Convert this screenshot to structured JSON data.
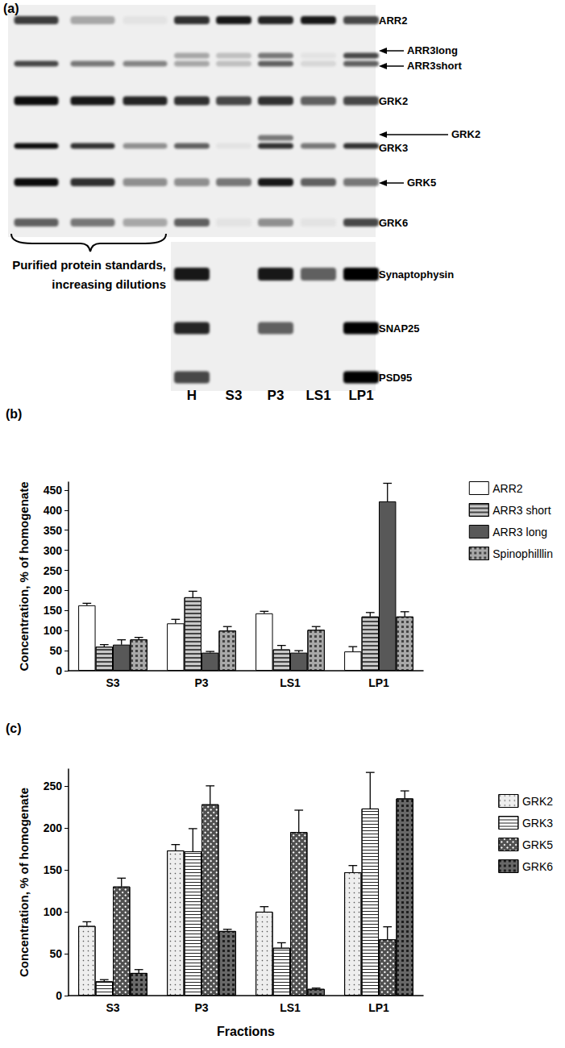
{
  "blot": {
    "label": "(a)",
    "lanes": [
      null,
      null,
      null,
      "H",
      "S3",
      "P3",
      "LS1",
      "LP1"
    ],
    "standards_label": [
      "Purified protein standards,",
      "increasing dilutions"
    ],
    "rows": [
      {
        "labels": [
          "ARR2"
        ],
        "bands": [
          [
            0.75,
            0.3,
            0.05,
            0.8,
            0.9,
            0.85,
            0.9,
            0.7
          ]
        ]
      },
      {
        "labels": [
          "ARR3long",
          "ARR3short"
        ],
        "bands": [
          [
            0,
            0,
            0,
            0.3,
            0.2,
            0.5,
            0.05,
            0.7
          ],
          [
            0.7,
            0.5,
            0.45,
            0.3,
            0.2,
            0.6,
            0.1,
            0.6
          ]
        ]
      },
      {
        "labels": [
          "GRK2"
        ],
        "bands": [
          [
            0.95,
            0.9,
            0.85,
            0.8,
            0.7,
            0.8,
            0.6,
            0.7
          ]
        ]
      },
      {
        "labels": [
          "GRK2",
          "GRK3"
        ],
        "bands": [
          [
            0,
            0,
            0,
            0,
            0,
            0.5,
            0,
            0
          ],
          [
            0.95,
            0.8,
            0.4,
            0.6,
            0.05,
            0.8,
            0.5,
            0.8
          ]
        ]
      },
      {
        "labels": [
          "GRK5"
        ],
        "bands": [
          [
            0.95,
            0.8,
            0.4,
            0.4,
            0.5,
            0.9,
            0.6,
            0.5
          ]
        ]
      },
      {
        "labels": [
          "GRK6"
        ],
        "bands": [
          [
            0.6,
            0.5,
            0.3,
            0.6,
            0.05,
            0.4,
            0.05,
            0.7
          ]
        ]
      },
      {
        "labels": [
          "Synaptophysin"
        ],
        "bands": [
          [
            null,
            null,
            null,
            0.9,
            0,
            0.9,
            0.6,
            1.0
          ]
        ]
      },
      {
        "labels": [
          "SNAP25"
        ],
        "bands": [
          [
            null,
            null,
            null,
            0.85,
            0,
            0.6,
            0,
            1.0
          ]
        ]
      },
      {
        "labels": [
          "PSD95"
        ],
        "bands": [
          [
            null,
            null,
            null,
            0.7,
            0,
            0,
            0,
            1.0
          ]
        ]
      }
    ]
  },
  "chart_data": [
    {
      "type": "bar",
      "title": "(b)",
      "categories": [
        "S3",
        "P3",
        "LS1",
        "LP1"
      ],
      "ylabel": "Concentration, % of homogenate",
      "ylim": [
        0,
        470
      ],
      "yticks": [
        0,
        50,
        100,
        150,
        200,
        250,
        300,
        350,
        400,
        450
      ],
      "grid": false,
      "legend": "top-right",
      "series": [
        {
          "name": "ARR2",
          "color": "#ffffff",
          "values": [
            163,
            118,
            143,
            48
          ],
          "errors": [
            5,
            10,
            5,
            12
          ]
        },
        {
          "name": "ARR3 short",
          "color": "#c8c8c8",
          "values": [
            60,
            183,
            53,
            135
          ],
          "errors": [
            5,
            15,
            10,
            10
          ]
        },
        {
          "name": "ARR3 long",
          "color": "#585858",
          "values": [
            65,
            45,
            45,
            422
          ],
          "errors": [
            12,
            3,
            5,
            45
          ]
        },
        {
          "name": "Spinophilllin",
          "color": "#a8a8a8",
          "values": [
            78,
            100,
            102,
            135
          ],
          "errors": [
            5,
            10,
            8,
            12
          ]
        }
      ]
    },
    {
      "type": "bar",
      "title": "(c)",
      "categories": [
        "S3",
        "P3",
        "LS1",
        "LP1"
      ],
      "xlabel": "Fractions",
      "ylabel": "Concentration, % of homogenate",
      "ylim": [
        0,
        270
      ],
      "yticks": [
        0,
        50,
        100,
        150,
        200,
        250
      ],
      "grid": false,
      "legend": "top-right",
      "series": [
        {
          "name": "GRK2",
          "color": "#eeeeee",
          "values": [
            83,
            173,
            100,
            147
          ],
          "errors": [
            5,
            7,
            6,
            8
          ]
        },
        {
          "name": "GRK3",
          "color": "#ffffff",
          "values": [
            17,
            172,
            57,
            223
          ],
          "errors": [
            2,
            27,
            6,
            43
          ]
        },
        {
          "name": "GRK5",
          "color": "#505050",
          "values": [
            130,
            228,
            195,
            67
          ],
          "errors": [
            10,
            22,
            26,
            15
          ]
        },
        {
          "name": "GRK6",
          "color": "#686868",
          "values": [
            27,
            77,
            8,
            235
          ],
          "errors": [
            4,
            2,
            1,
            9
          ]
        }
      ]
    }
  ]
}
